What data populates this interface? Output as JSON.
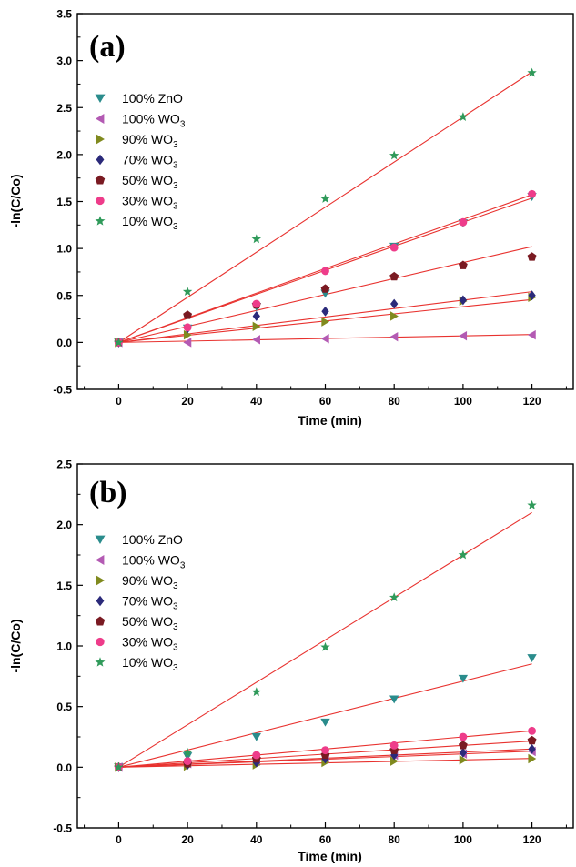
{
  "chart_data": [
    {
      "type": "scatter",
      "panel_label": "(a)",
      "xlabel": "Time (min)",
      "ylabel": "-ln(C/Co)",
      "xlim": [
        -12,
        132
      ],
      "ylim": [
        -0.5,
        3.5
      ],
      "xticks": [
        0,
        20,
        40,
        60,
        80,
        100,
        120
      ],
      "yticks": [
        -0.5,
        0.0,
        0.5,
        1.0,
        1.5,
        2.0,
        2.5,
        3.0,
        3.5
      ],
      "ytick_labels": [
        "-0.5",
        "0.0",
        "0.5",
        "1.0",
        "1.5",
        "2.0",
        "2.5",
        "3.0",
        "3.5"
      ],
      "legend_position": "top-left",
      "fit_lines": true,
      "fit_color": "#e8322f",
      "x": [
        0,
        20,
        40,
        60,
        80,
        100,
        120
      ],
      "series": [
        {
          "name": "100% ZnO",
          "base": "100% ZnO",
          "sub": "",
          "marker": "triangle-down",
          "color": "#2a8c8c",
          "values": [
            0,
            0.15,
            0.38,
            0.52,
            1.02,
            1.27,
            1.55
          ],
          "slope": 0.0128
        },
        {
          "name": "100% WO3",
          "base": "100% WO",
          "sub": "3",
          "marker": "triangle-left",
          "color": "#b35ab3",
          "values": [
            0,
            0.0,
            0.03,
            0.04,
            0.06,
            0.07,
            0.08
          ],
          "slope": 0.0007
        },
        {
          "name": "90% WO3",
          "base": "90% WO",
          "sub": "3",
          "marker": "triangle-right",
          "color": "#808a1e",
          "values": [
            0,
            0.08,
            0.17,
            0.22,
            0.28,
            0.44,
            0.48
          ],
          "slope": 0.0038
        },
        {
          "name": "70% WO3",
          "base": "70% WO",
          "sub": "3",
          "marker": "diamond",
          "color": "#2b2a7a",
          "values": [
            0,
            0.15,
            0.28,
            0.33,
            0.41,
            0.45,
            0.5
          ],
          "slope": 0.0045
        },
        {
          "name": "50% WO3",
          "base": "50% WO",
          "sub": "3",
          "marker": "pentagon",
          "color": "#7a1a22",
          "values": [
            0,
            0.29,
            0.4,
            0.57,
            0.7,
            0.82,
            0.91
          ],
          "slope": 0.0085
        },
        {
          "name": "30% WO3",
          "base": "30% WO",
          "sub": "3",
          "marker": "circle",
          "color": "#ee3c8a",
          "values": [
            0,
            0.16,
            0.41,
            0.76,
            1.01,
            1.28,
            1.58
          ],
          "slope": 0.0131
        },
        {
          "name": "10% WO3",
          "base": "10% WO",
          "sub": "3",
          "marker": "star",
          "color": "#2f9a5a",
          "values": [
            0,
            0.54,
            1.1,
            1.53,
            1.99,
            2.4,
            2.87
          ],
          "slope": 0.024
        }
      ]
    },
    {
      "type": "scatter",
      "panel_label": "(b)",
      "xlabel": "Time (min)",
      "ylabel": "-ln(C/Co)",
      "xlim": [
        -12,
        132
      ],
      "ylim": [
        -0.5,
        2.5
      ],
      "xticks": [
        0,
        20,
        40,
        60,
        80,
        100,
        120
      ],
      "yticks": [
        -0.5,
        0.0,
        0.5,
        1.0,
        1.5,
        2.0,
        2.5
      ],
      "ytick_labels": [
        "-0.5",
        "0.0",
        "0.5",
        "1.0",
        "1.5",
        "2.0",
        "2.5"
      ],
      "legend_position": "top-left",
      "fit_lines": true,
      "fit_color": "#e8322f",
      "x": [
        0,
        20,
        40,
        60,
        80,
        100,
        120
      ],
      "series": [
        {
          "name": "100% ZnO",
          "base": "100% ZnO",
          "sub": "",
          "marker": "triangle-down",
          "color": "#2a8c8c",
          "values": [
            0,
            0.09,
            0.25,
            0.37,
            0.56,
            0.73,
            0.9
          ],
          "slope": 0.0071
        },
        {
          "name": "100% WO3",
          "base": "100% WO",
          "sub": "3",
          "marker": "triangle-left",
          "color": "#b35ab3",
          "values": [
            0,
            0.03,
            0.05,
            0.07,
            0.1,
            0.11,
            0.13
          ],
          "slope": 0.0011
        },
        {
          "name": "90% WO3",
          "base": "90% WO",
          "sub": "3",
          "marker": "triangle-right",
          "color": "#808a1e",
          "values": [
            0,
            0.01,
            0.02,
            0.04,
            0.05,
            0.06,
            0.07
          ],
          "slope": 0.0006
        },
        {
          "name": "70% WO3",
          "base": "70% WO",
          "sub": "3",
          "marker": "diamond",
          "color": "#2b2a7a",
          "values": [
            0,
            0.02,
            0.04,
            0.07,
            0.1,
            0.12,
            0.15
          ],
          "slope": 0.00125
        },
        {
          "name": "50% WO3",
          "base": "50% WO",
          "sub": "3",
          "marker": "pentagon",
          "color": "#7a1a22",
          "values": [
            0,
            0.03,
            0.07,
            0.1,
            0.14,
            0.18,
            0.22
          ],
          "slope": 0.0018
        },
        {
          "name": "30% WO3",
          "base": "30% WO",
          "sub": "3",
          "marker": "circle",
          "color": "#ee3c8a",
          "values": [
            0,
            0.05,
            0.1,
            0.14,
            0.18,
            0.25,
            0.3
          ],
          "slope": 0.0025
        },
        {
          "name": "10% WO3",
          "base": "10% WO",
          "sub": "3",
          "marker": "star",
          "color": "#2f9a5a",
          "values": [
            0,
            0.12,
            0.62,
            0.99,
            1.4,
            1.75,
            2.16
          ],
          "slope": 0.0175
        }
      ]
    }
  ]
}
